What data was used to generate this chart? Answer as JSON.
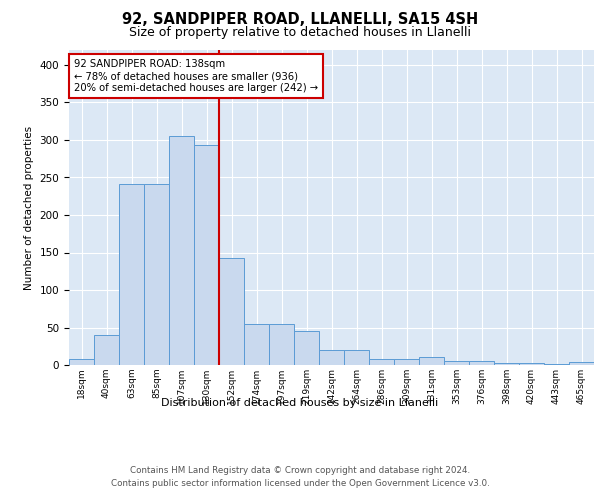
{
  "title1": "92, SANDPIPER ROAD, LLANELLI, SA15 4SH",
  "title2": "Size of property relative to detached houses in Llanelli",
  "xlabel": "Distribution of detached houses by size in Llanelli",
  "ylabel": "Number of detached properties",
  "bar_labels": [
    "18sqm",
    "40sqm",
    "63sqm",
    "85sqm",
    "107sqm",
    "130sqm",
    "152sqm",
    "174sqm",
    "197sqm",
    "219sqm",
    "242sqm",
    "264sqm",
    "286sqm",
    "309sqm",
    "331sqm",
    "353sqm",
    "376sqm",
    "398sqm",
    "420sqm",
    "443sqm",
    "465sqm"
  ],
  "bar_values": [
    8,
    40,
    241,
    241,
    305,
    293,
    143,
    55,
    55,
    46,
    20,
    20,
    8,
    8,
    11,
    5,
    5,
    3,
    3,
    1,
    4
  ],
  "bar_color": "#c9d9ee",
  "bar_edge_color": "#5b9bd5",
  "vline_x_idx": 6,
  "vline_color": "#cc0000",
  "annotation_text": "92 SANDPIPER ROAD: 138sqm\n← 78% of detached houses are smaller (936)\n20% of semi-detached houses are larger (242) →",
  "annotation_box_color": "white",
  "annotation_box_edge": "#cc0000",
  "ylim": [
    0,
    420
  ],
  "yticks": [
    0,
    50,
    100,
    150,
    200,
    250,
    300,
    350,
    400
  ],
  "background_color": "#dce8f5",
  "footer": "Contains HM Land Registry data © Crown copyright and database right 2024.\nContains public sector information licensed under the Open Government Licence v3.0."
}
